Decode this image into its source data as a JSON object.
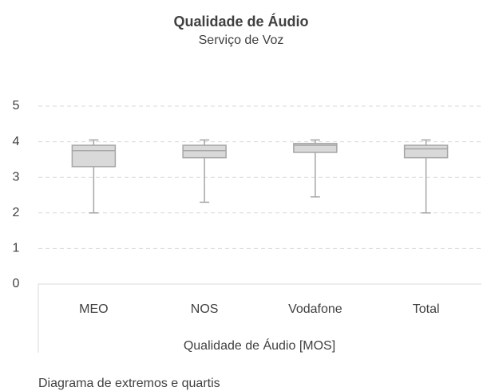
{
  "chart_data": {
    "type": "box",
    "title": "Qualidade de Áudio",
    "subtitle": "Serviço de Voz",
    "xlabel": "Qualidade de Áudio [MOS]",
    "note": "Diagrama de extremos e quartis",
    "categories": [
      "MEO",
      "NOS",
      "Vodafone",
      "Total"
    ],
    "boxes": [
      {
        "min": 2.0,
        "q1": 3.3,
        "median": 3.75,
        "q3": 3.9,
        "max": 4.05
      },
      {
        "min": 2.3,
        "q1": 3.55,
        "median": 3.75,
        "q3": 3.9,
        "max": 4.05
      },
      {
        "min": 2.45,
        "q1": 3.7,
        "median": 3.9,
        "q3": 3.95,
        "max": 4.05
      },
      {
        "min": 2.0,
        "q1": 3.55,
        "median": 3.8,
        "q3": 3.9,
        "max": 4.05
      }
    ],
    "color": "#d9d9d9",
    "ylim": [
      0,
      5
    ],
    "yticks": [
      0,
      1,
      2,
      3,
      4,
      5
    ],
    "grid": true
  }
}
